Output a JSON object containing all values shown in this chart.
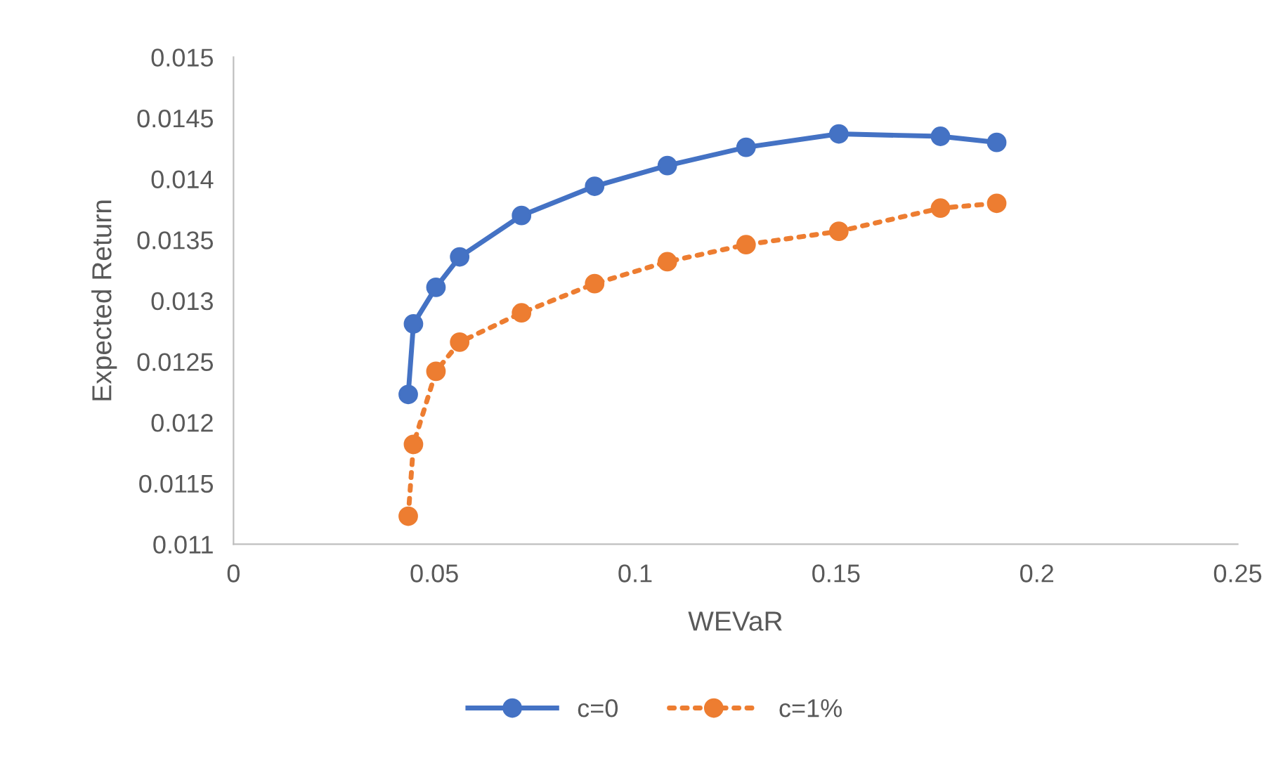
{
  "chart_data": {
    "type": "line",
    "xlabel": "WEVaR",
    "ylabel": "Expected Return",
    "xlim": [
      0,
      0.25
    ],
    "xticks": [
      0,
      0.05,
      0.1,
      0.15,
      0.2,
      0.25
    ],
    "ylim": [
      0.011,
      0.015
    ],
    "yticks": [
      0.011,
      0.0115,
      0.012,
      0.0125,
      0.013,
      0.0135,
      0.014,
      0.0145,
      0.015
    ],
    "grid": false,
    "legend": "bottom",
    "marker": "circle",
    "series": [
      {
        "name": "c=0",
        "color": "#4472c4",
        "line_style": "solid",
        "x": [
          0.0435,
          0.0448,
          0.0504,
          0.0563,
          0.0717,
          0.0899,
          0.108,
          0.1276,
          0.1507,
          0.176,
          0.19
        ],
        "values": [
          0.01223,
          0.01281,
          0.01311,
          0.01336,
          0.0137,
          0.01394,
          0.01411,
          0.01426,
          0.01437,
          0.01435,
          0.0143
        ]
      },
      {
        "name": "c=1%",
        "color": "#ed7d31",
        "line_style": "dotted",
        "x": [
          0.0435,
          0.0448,
          0.0504,
          0.0563,
          0.0717,
          0.0899,
          0.108,
          0.1276,
          0.1507,
          0.176,
          0.19
        ],
        "values": [
          0.01123,
          0.01182,
          0.01242,
          0.01266,
          0.0129,
          0.01314,
          0.01332,
          0.01346,
          0.01357,
          0.01376,
          0.0138
        ]
      }
    ]
  }
}
